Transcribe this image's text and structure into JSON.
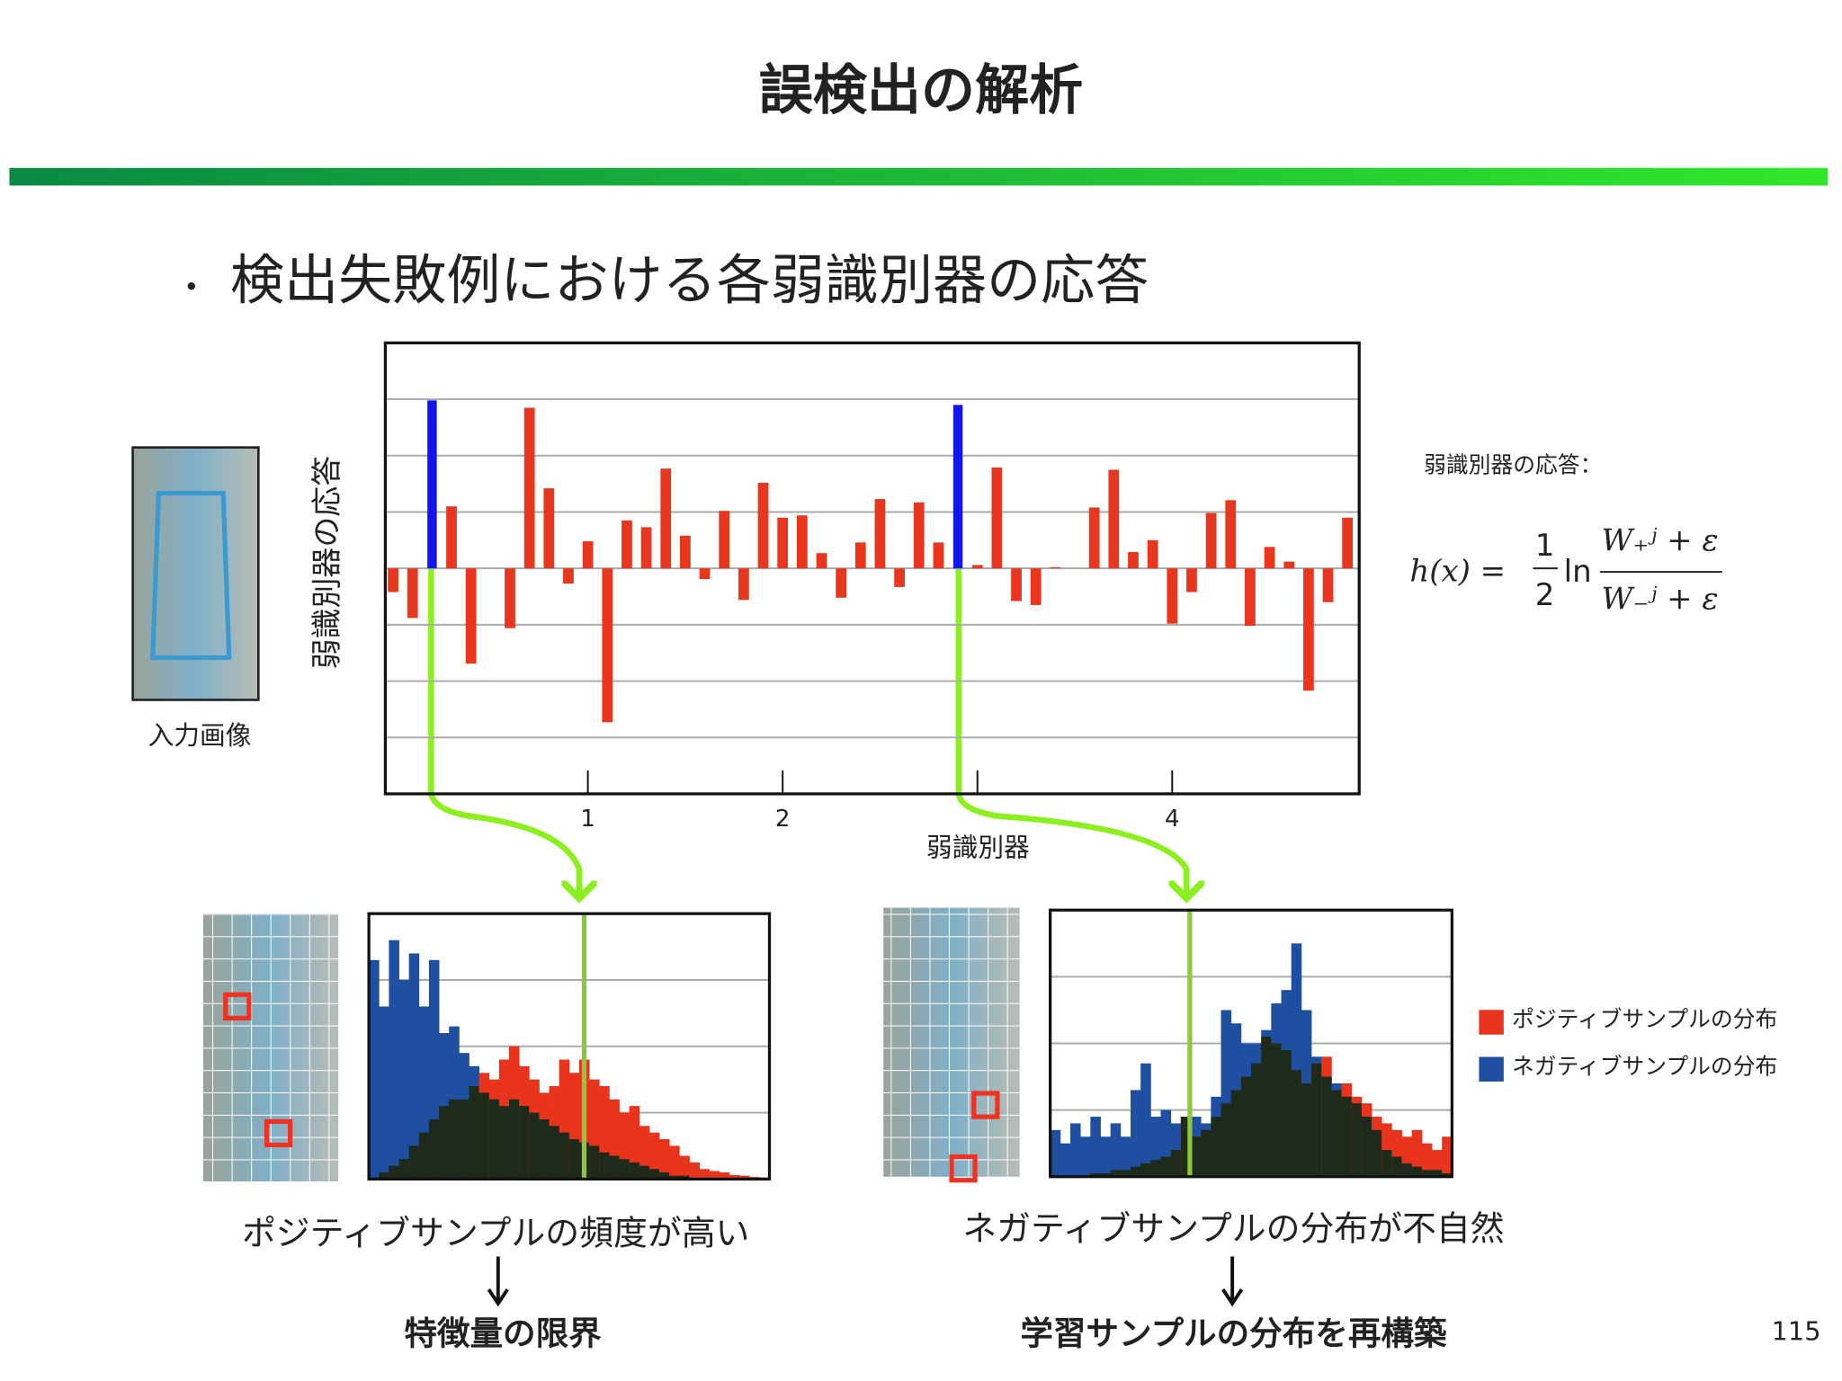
{
  "slide": {
    "title": "誤検出の解析",
    "bullet_mark": "・",
    "bullet": "検出失敗例における各弱識別器の応答",
    "input_caption": "入力画像",
    "response_caption": "弱識別器の応答：",
    "formula": {
      "lhs": "h(x) =",
      "num": "1",
      "den": "2",
      "ln": "ln",
      "top": "W₊ʲ + ε",
      "bottom": "W₋ʲ + ε"
    },
    "left_caption": "ポジティブサンプルの頻度が高い",
    "left_conclusion": "特徴量の限界",
    "right_caption": "ネガティブサンプルの分布が不自然",
    "right_conclusion": "学習サンプルの分布を再構築",
    "page_number": "115"
  },
  "chart_data": [
    {
      "type": "bar",
      "x_label": "弱識別器",
      "y_label": "弱識別器の応答",
      "x": [
        0,
        0.1,
        0.2,
        0.3,
        0.4,
        0.5,
        0.6,
        0.7,
        0.8,
        0.9,
        1,
        1.1,
        1.2,
        1.3,
        1.4,
        1.5,
        1.6,
        1.7,
        1.8,
        1.9,
        2,
        2.1,
        2.2,
        2.3,
        2.4,
        2.5,
        2.6,
        2.7,
        2.8,
        2.9,
        3,
        3.1,
        3.2,
        3.3,
        3.4,
        3.5,
        3.6,
        3.7,
        3.8,
        3.9,
        4,
        4.1,
        4.2,
        4.3,
        4.4,
        4.5,
        4.6,
        4.7,
        4.8,
        4.9
      ],
      "values": [
        -0.42,
        -0.88,
        2.98,
        1.1,
        -1.69,
        0,
        -1.06,
        2.85,
        1.42,
        -0.27,
        0.48,
        -2.73,
        0.85,
        0.73,
        1.77,
        0.58,
        -0.19,
        1.02,
        -0.56,
        1.52,
        0.9,
        0.94,
        0.27,
        -0.52,
        0.46,
        1.23,
        -0.33,
        1.17,
        0.46,
        2.9,
        0.06,
        1.79,
        -0.58,
        -0.65,
        0.02,
        0,
        1.08,
        1.75,
        0.29,
        0.5,
        -0.98,
        -0.42,
        0.98,
        1.21,
        -1.02,
        0.38,
        0.12,
        -2.17,
        -0.6,
        0.9
      ],
      "color": "#e8361f",
      "highlight": [
        2,
        29
      ],
      "highlight_color": "#1414ee",
      "xlim": [
        -0.04,
        4.96
      ],
      "xticks": [
        {
          "value": 1,
          "label": "1"
        },
        {
          "value": 2,
          "label": "2"
        },
        {
          "value": 3,
          "label": null
        },
        {
          "value": 4,
          "label": "4"
        }
      ],
      "ylim": [
        -4,
        4
      ],
      "yticks": [
        -3,
        -2,
        -1,
        0,
        1,
        2,
        3
      ],
      "grid": true
    },
    {
      "type": "histogram",
      "bins": [
        0,
        1,
        2,
        3,
        4,
        5,
        6,
        7,
        8,
        9,
        10,
        11,
        12,
        13,
        14,
        15,
        16,
        17,
        18,
        19,
        20,
        21,
        22,
        23,
        24,
        25,
        26,
        27,
        28,
        29,
        30,
        31,
        32,
        33,
        34,
        35,
        36,
        37,
        38,
        39,
        40
      ],
      "series": [
        {
          "name": "ポジティブサンプルの分布",
          "color": "#e8341c",
          "values": [
            0,
            0.1,
            0.2,
            0.3,
            0.5,
            0.7,
            0.9,
            1.1,
            1.2,
            1.2,
            1.4,
            1.6,
            1.5,
            1.8,
            2.0,
            1.7,
            1.5,
            1.3,
            1.4,
            1.8,
            1.6,
            1.8,
            1.5,
            1.4,
            1.2,
            1.0,
            1.1,
            0.8,
            0.7,
            0.6,
            0.5,
            0.35,
            0.25,
            0.15,
            0.12,
            0.1,
            0.06,
            0.05,
            0.03,
            0.02
          ]
        },
        {
          "name": "ネガティブサンプルの分布",
          "color": "#1f4fa0",
          "values": [
            3.3,
            2.6,
            3.6,
            3.0,
            3.4,
            2.6,
            3.3,
            2.2,
            2.3,
            1.9,
            1.7,
            1.3,
            1.2,
            1.1,
            1.2,
            1.1,
            1.0,
            0.9,
            0.8,
            0.7,
            0.6,
            0.55,
            0.5,
            0.4,
            0.35,
            0.3,
            0.25,
            0.2,
            0.15,
            0.1,
            0.05,
            0.05,
            0,
            0,
            0,
            0,
            0,
            0,
            0,
            0
          ]
        }
      ],
      "overlap_color": "#1e2a1a",
      "threshold": 21.5,
      "threshold_color": "#8ec63f",
      "xlim": [
        0,
        40
      ],
      "ylim": [
        0,
        4
      ],
      "yticks": [
        1,
        2,
        3
      ],
      "grid": true
    },
    {
      "type": "histogram",
      "bins": [
        0,
        1,
        2,
        3,
        4,
        5,
        6,
        7,
        8,
        9,
        10,
        11,
        12,
        13,
        14,
        15,
        16,
        17,
        18,
        19,
        20,
        21,
        22,
        23,
        24,
        25,
        26,
        27,
        28,
        29,
        30,
        31,
        32,
        33,
        34,
        35,
        36,
        37,
        38,
        39,
        40
      ],
      "series": [
        {
          "color": "#e8341c",
          "values": [
            0,
            0,
            0,
            0,
            0.05,
            0.05,
            0.1,
            0.1,
            0.15,
            0.2,
            0.25,
            0.3,
            0.4,
            0.9,
            0.6,
            0.7,
            0.9,
            1.1,
            1.3,
            1.5,
            1.7,
            2.1,
            2.0,
            1.9,
            1.6,
            1.4,
            1.7,
            1.8,
            1.3,
            1.4,
            1.2,
            1.1,
            0.9,
            0.8,
            0.7,
            0.6,
            0.7,
            0.5,
            0.4,
            0.6
          ]
        },
        {
          "color": "#1f4fa0",
          "values": [
            0.7,
            0.5,
            0.8,
            0.6,
            0.9,
            0.6,
            0.8,
            0.6,
            1.3,
            1.7,
            0.9,
            1.0,
            0.8,
            0.9,
            0.9,
            0.8,
            1.2,
            2.5,
            2.3,
            2.0,
            2.0,
            2.2,
            2.6,
            2.8,
            3.5,
            2.5,
            1.8,
            1.5,
            1.4,
            1.2,
            1.1,
            0.9,
            0.7,
            0.4,
            0.3,
            0.2,
            0.15,
            0.1,
            0.1,
            0.05
          ]
        }
      ],
      "overlap_color": "#1e2a1a",
      "threshold": 13.9,
      "threshold_color": "#8ec63f",
      "xlim": [
        0,
        40
      ],
      "ylim": [
        0,
        4
      ],
      "yticks": [
        1,
        2,
        3
      ],
      "grid": true
    }
  ]
}
